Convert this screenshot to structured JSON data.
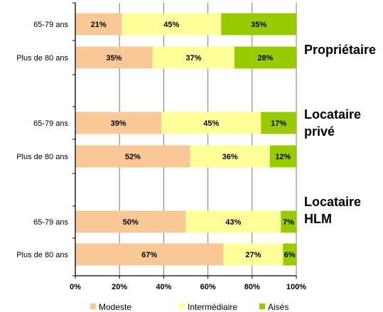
{
  "chart_data": {
    "type": "bar",
    "orientation": "horizontal",
    "stacked": true,
    "title": "",
    "xlabel": "",
    "ylabel": "",
    "xlim": [
      0,
      100
    ],
    "x_ticks": [
      "0%",
      "20%",
      "40%",
      "60%",
      "80%",
      "100%"
    ],
    "grid": "vertical",
    "legend_position": "bottom",
    "groups": [
      {
        "label": "Propriétaire",
        "bars": [
          {
            "category": "65-79 ans",
            "values": [
              21,
              45,
              35
            ],
            "labels": [
              "21%",
              "45%",
              "35%"
            ]
          },
          {
            "category": "Plus de 80 ans",
            "values": [
              35,
              37,
              28
            ],
            "labels": [
              "35%",
              "37%",
              "28%"
            ]
          }
        ]
      },
      {
        "label": "Locataire privé",
        "bars": [
          {
            "category": "65-79 ans",
            "values": [
              39,
              45,
              17
            ],
            "labels": [
              "39%",
              "45%",
              "17%"
            ]
          },
          {
            "category": "Plus de 80 ans",
            "values": [
              52,
              36,
              12
            ],
            "labels": [
              "52%",
              "36%",
              "12%"
            ]
          }
        ]
      },
      {
        "label": "Locataire HLM",
        "bars": [
          {
            "category": "65-79 ans",
            "values": [
              50,
              43,
              7
            ],
            "labels": [
              "50%",
              "43%",
              "7%"
            ]
          },
          {
            "category": "Plus de 80 ans",
            "values": [
              67,
              27,
              6
            ],
            "labels": [
              "67%",
              "27%",
              "6%"
            ]
          }
        ]
      }
    ],
    "series": [
      {
        "name": "Modeste",
        "color": "#FAC896"
      },
      {
        "name": "Intermédiaire",
        "color": "#FFFF99"
      },
      {
        "name": "Aisés",
        "color": "#99CC00"
      }
    ]
  }
}
